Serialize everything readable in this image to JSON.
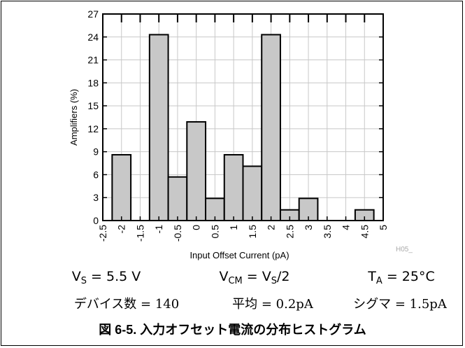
{
  "chart_data": {
    "type": "bar",
    "xlabel": "Input Offset Current (pA)",
    "ylabel": "Amplifiers (%)",
    "ylim": [
      0,
      27
    ],
    "yticks": [
      0,
      3,
      6,
      9,
      12,
      15,
      18,
      21,
      24,
      27
    ],
    "xlim": [
      -2.5,
      5
    ],
    "xticks": [
      "-2.5",
      "-2",
      "-1.5",
      "-1",
      "-0.5",
      "0",
      "0.5",
      "1",
      "1.5",
      "2",
      "2.5",
      "3",
      "3.5",
      "4",
      "4.5",
      "5"
    ],
    "bin_width": 0.5,
    "categories": [
      -2,
      -1.5,
      -1,
      -0.5,
      0,
      0.5,
      1,
      1.5,
      2,
      2.5,
      3,
      3.5,
      4,
      4.5
    ],
    "values": [
      8.6,
      0,
      24.3,
      5.7,
      12.9,
      2.9,
      8.6,
      7.1,
      24.3,
      1.4,
      2.9,
      0,
      0,
      1.4
    ],
    "grid": true,
    "bar_color": "#c8c8c8",
    "watermark": "H05_"
  },
  "conditions": {
    "vs": {
      "main": "V",
      "sub": "S",
      "rest": " = 5.5 V"
    },
    "vcm": {
      "main": "V",
      "sub": "CM",
      "mid": " = V",
      "sub2": "S",
      "rest": "/2"
    },
    "ta": {
      "main": "T",
      "sub": "A",
      "rest": " = 25°C"
    },
    "devices": "デバイス数 = 140",
    "mean": "平均 = 0.2pA",
    "sigma": "シグマ = 1.5pA"
  },
  "caption": "図 6-5. 入力オフセット電流の分布ヒストグラム"
}
